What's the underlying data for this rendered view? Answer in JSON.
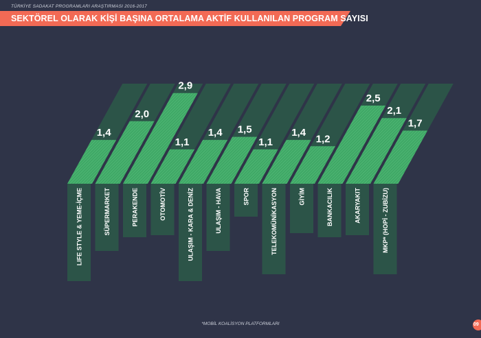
{
  "header": {
    "caption": "TÜRKİYE SADAKAT PROGRAMLARI ARAŞTIRMASI 2016-2017",
    "title": "SEKTÖREL OLARAK KİŞİ BAŞINA ORTALAMA AKTİF KULLANILAN PROGRAM SAYISI"
  },
  "footer": {
    "footnote": "*MOBİL KOALİSYON PLATFORMLARI",
    "page_number": "09"
  },
  "colors": {
    "background": "#2f3448",
    "banner": "#f26a55",
    "bar_bright": "#3fa866",
    "bar_track": "#2c5448",
    "label_box": "#2c5448"
  },
  "chart_data": {
    "type": "bar",
    "title": "SEKTÖREL OLARAK KİŞİ BAŞINA ORTALAMA AKTİF KULLANILAN PROGRAM SAYISI",
    "categories": [
      "LIFE STYLE & YEME-İÇME",
      "SÜPERMARKET",
      "PERAKENDE",
      "OTOMOTİV",
      "ULAŞIM - KARA & DENİZ",
      "ULAŞIM - HAVA",
      "SPOR",
      "TELEKOMÜNİKASYON",
      "GİYİM",
      "BANKACILIK",
      "AKARYAKIT",
      "MKP* (HOPİ - ZUBİZU)"
    ],
    "values": [
      1.4,
      2.0,
      2.9,
      1.1,
      1.4,
      1.5,
      1.1,
      1.4,
      1.2,
      2.5,
      2.1,
      1.7
    ],
    "value_labels": [
      "1,4",
      "2,0",
      "2,9",
      "1,1",
      "1,4",
      "1,5",
      "1,1",
      "1,4",
      "1,2",
      "2,5",
      "2,1",
      "1,7"
    ],
    "ylim": [
      0,
      3.2
    ],
    "grid": false,
    "legend": "none"
  }
}
